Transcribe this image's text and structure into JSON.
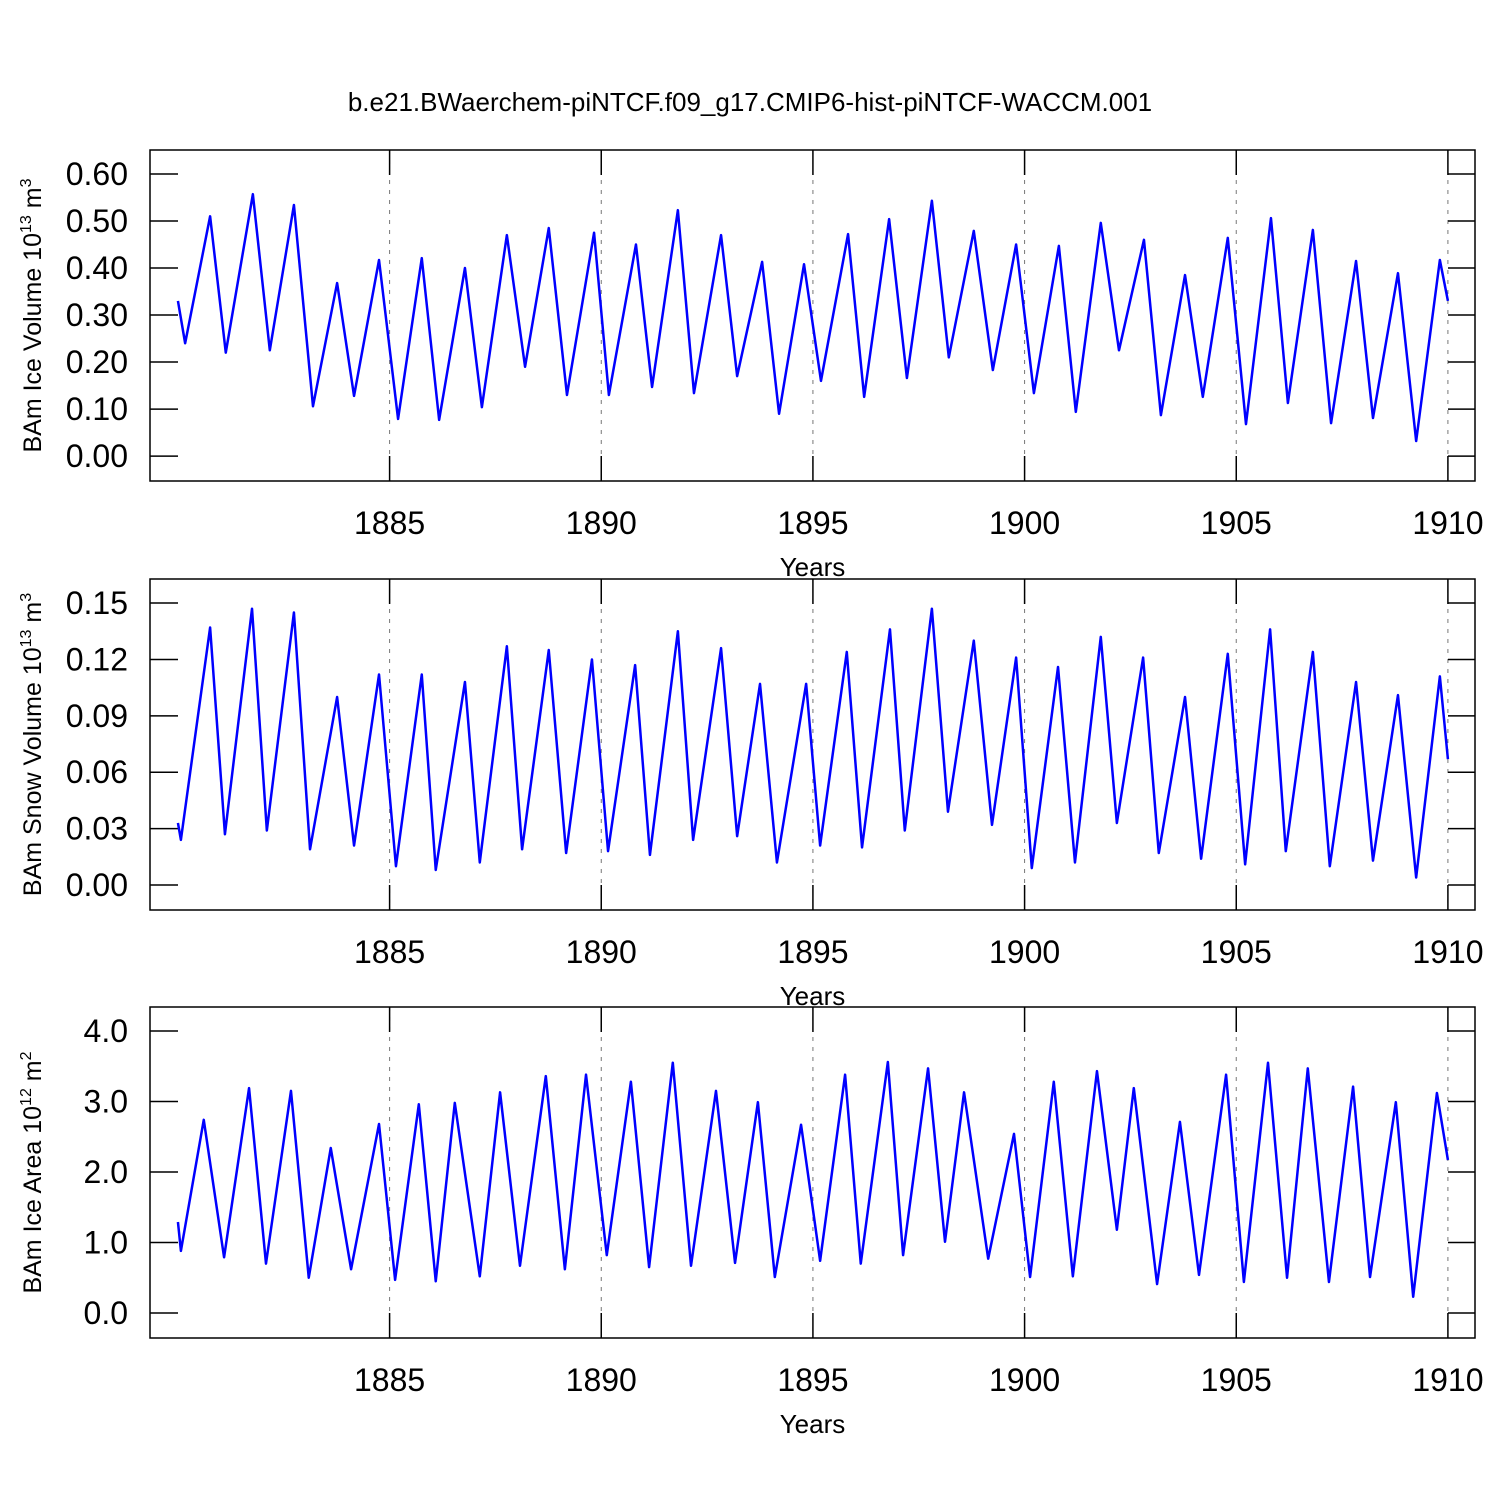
{
  "chart_data": [
    {
      "type": "line",
      "title": "b.e21.BWaerchem-piNTCF.f09_g17.CMIP6-hist-piNTCF-WACCM.001",
      "ylabel": [
        "BAm Ice Volume 10",
        "13",
        " m",
        "3"
      ],
      "xlabel": "Years",
      "color": "#0000ff",
      "grid": true,
      "xlim": [
        1879.34,
        1910.64
      ],
      "xticks": [
        1885,
        1890,
        1895,
        1900,
        1905,
        1910
      ],
      "ylim": [
        -0.053,
        0.651
      ],
      "yticks": [
        {
          "value": 0,
          "label": "0.00"
        },
        {
          "value": 0.1,
          "label": "0.10"
        },
        {
          "value": 0.2,
          "label": "0.20"
        },
        {
          "value": 0.3,
          "label": "0.30"
        },
        {
          "value": 0.4,
          "label": "0.40"
        },
        {
          "value": 0.5,
          "label": "0.50"
        },
        {
          "value": 0.6,
          "label": "0.60"
        }
      ],
      "x": [
        1880.0,
        1880.17,
        1880.76,
        1881.13,
        1881.77,
        1882.17,
        1882.74,
        1883.19,
        1883.76,
        1884.16,
        1884.75,
        1885.2,
        1885.76,
        1886.17,
        1886.78,
        1887.18,
        1887.77,
        1888.2,
        1888.76,
        1889.19,
        1889.83,
        1890.18,
        1890.82,
        1891.2,
        1891.81,
        1892.19,
        1892.83,
        1893.21,
        1893.8,
        1894.2,
        1894.79,
        1895.19,
        1895.83,
        1896.21,
        1896.8,
        1897.22,
        1897.81,
        1898.21,
        1898.8,
        1899.25,
        1899.8,
        1900.22,
        1900.81,
        1901.21,
        1901.8,
        1902.23,
        1902.82,
        1903.22,
        1903.79,
        1904.21,
        1904.8,
        1905.23,
        1905.82,
        1906.22,
        1906.81,
        1907.24,
        1907.83,
        1908.23,
        1908.82,
        1909.25,
        1909.81,
        1910.0
      ],
      "values": [
        0.33,
        0.24,
        0.51,
        0.22,
        0.557,
        0.225,
        0.534,
        0.106,
        0.368,
        0.128,
        0.417,
        0.079,
        0.421,
        0.077,
        0.4,
        0.104,
        0.47,
        0.19,
        0.485,
        0.13,
        0.475,
        0.13,
        0.45,
        0.147,
        0.523,
        0.134,
        0.47,
        0.17,
        0.413,
        0.09,
        0.408,
        0.16,
        0.472,
        0.126,
        0.504,
        0.166,
        0.543,
        0.21,
        0.479,
        0.183,
        0.45,
        0.134,
        0.447,
        0.094,
        0.496,
        0.225,
        0.46,
        0.087,
        0.385,
        0.126,
        0.464,
        0.068,
        0.506,
        0.113,
        0.481,
        0.07,
        0.415,
        0.081,
        0.389,
        0.032,
        0.417,
        0.33
      ]
    },
    {
      "type": "line",
      "ylabel": [
        "BAm Snow Volume 10",
        "13",
        " m",
        "3"
      ],
      "xlabel": "Years",
      "color": "#0000ff",
      "grid": true,
      "xlim": [
        1879.34,
        1910.64
      ],
      "xticks": [
        1885,
        1890,
        1895,
        1900,
        1905,
        1910
      ],
      "ylim": [
        -0.0133,
        0.1628
      ],
      "yticks": [
        {
          "value": 0,
          "label": "0.00"
        },
        {
          "value": 0.03,
          "label": "0.03"
        },
        {
          "value": 0.06,
          "label": "0.06"
        },
        {
          "value": 0.09,
          "label": "0.09"
        },
        {
          "value": 0.12,
          "label": "0.12"
        },
        {
          "value": 0.15,
          "label": "0.15"
        }
      ],
      "x": [
        1880.0,
        1880.07,
        1880.76,
        1881.11,
        1881.75,
        1882.1,
        1882.74,
        1883.12,
        1883.76,
        1884.16,
        1884.75,
        1885.15,
        1885.76,
        1886.09,
        1886.78,
        1887.13,
        1887.77,
        1888.13,
        1888.76,
        1889.17,
        1889.78,
        1890.16,
        1890.8,
        1891.15,
        1891.81,
        1892.17,
        1892.83,
        1893.21,
        1893.75,
        1894.15,
        1894.84,
        1895.17,
        1895.8,
        1896.16,
        1896.82,
        1897.17,
        1897.81,
        1898.19,
        1898.8,
        1899.23,
        1899.8,
        1900.17,
        1900.79,
        1901.19,
        1901.8,
        1902.18,
        1902.8,
        1903.17,
        1903.79,
        1904.17,
        1904.8,
        1905.21,
        1905.8,
        1906.17,
        1906.81,
        1907.21,
        1907.83,
        1908.23,
        1908.82,
        1909.25,
        1909.81,
        1910.0
      ],
      "values": [
        0.033,
        0.024,
        0.137,
        0.027,
        0.147,
        0.029,
        0.145,
        0.019,
        0.1,
        0.021,
        0.112,
        0.01,
        0.112,
        0.008,
        0.108,
        0.012,
        0.127,
        0.019,
        0.125,
        0.017,
        0.12,
        0.018,
        0.117,
        0.016,
        0.135,
        0.024,
        0.126,
        0.026,
        0.107,
        0.012,
        0.107,
        0.021,
        0.124,
        0.02,
        0.136,
        0.029,
        0.147,
        0.039,
        0.13,
        0.032,
        0.121,
        0.009,
        0.116,
        0.012,
        0.132,
        0.033,
        0.121,
        0.017,
        0.1,
        0.014,
        0.123,
        0.011,
        0.136,
        0.018,
        0.124,
        0.01,
        0.108,
        0.013,
        0.101,
        0.004,
        0.111,
        0.067
      ]
    },
    {
      "type": "line",
      "ylabel": [
        "BAm Ice Area 10",
        "12",
        " m",
        "2"
      ],
      "xlabel": "Years",
      "color": "#0000ff",
      "grid": true,
      "xlim": [
        1879.34,
        1910.64
      ],
      "xticks": [
        1885,
        1890,
        1895,
        1900,
        1905,
        1910
      ],
      "ylim": [
        -0.355,
        4.34
      ],
      "yticks": [
        {
          "value": 0,
          "label": "0.0"
        },
        {
          "value": 1,
          "label": "1.0"
        },
        {
          "value": 2,
          "label": "2.0"
        },
        {
          "value": 3,
          "label": "3.0"
        },
        {
          "value": 4,
          "label": "4.0"
        }
      ],
      "x": [
        1880.0,
        1880.07,
        1880.61,
        1881.09,
        1881.68,
        1882.08,
        1882.67,
        1883.09,
        1883.61,
        1884.09,
        1884.75,
        1885.13,
        1885.69,
        1886.09,
        1886.54,
        1887.13,
        1887.61,
        1888.08,
        1888.69,
        1889.14,
        1889.64,
        1890.13,
        1890.7,
        1891.13,
        1891.69,
        1892.12,
        1892.71,
        1893.16,
        1893.7,
        1894.1,
        1894.72,
        1895.17,
        1895.76,
        1896.13,
        1896.77,
        1897.13,
        1897.72,
        1898.12,
        1898.57,
        1899.14,
        1899.75,
        1900.13,
        1900.69,
        1901.14,
        1901.71,
        1902.18,
        1902.58,
        1903.13,
        1903.67,
        1904.12,
        1904.76,
        1905.18,
        1905.75,
        1906.2,
        1906.69,
        1907.19,
        1907.76,
        1908.16,
        1908.77,
        1909.18,
        1909.74,
        1910.0
      ],
      "values": [
        1.29,
        0.88,
        2.74,
        0.79,
        3.19,
        0.7,
        3.15,
        0.5,
        2.34,
        0.62,
        2.68,
        0.47,
        2.96,
        0.45,
        2.98,
        0.52,
        3.13,
        0.67,
        3.36,
        0.62,
        3.38,
        0.82,
        3.28,
        0.65,
        3.55,
        0.67,
        3.15,
        0.71,
        2.99,
        0.51,
        2.67,
        0.74,
        3.38,
        0.7,
        3.56,
        0.82,
        3.47,
        1.01,
        3.13,
        0.77,
        2.54,
        0.51,
        3.28,
        0.52,
        3.43,
        1.18,
        3.19,
        0.41,
        2.71,
        0.54,
        3.38,
        0.44,
        3.55,
        0.5,
        3.47,
        0.44,
        3.21,
        0.51,
        2.99,
        0.23,
        3.12,
        2.17
      ]
    }
  ]
}
